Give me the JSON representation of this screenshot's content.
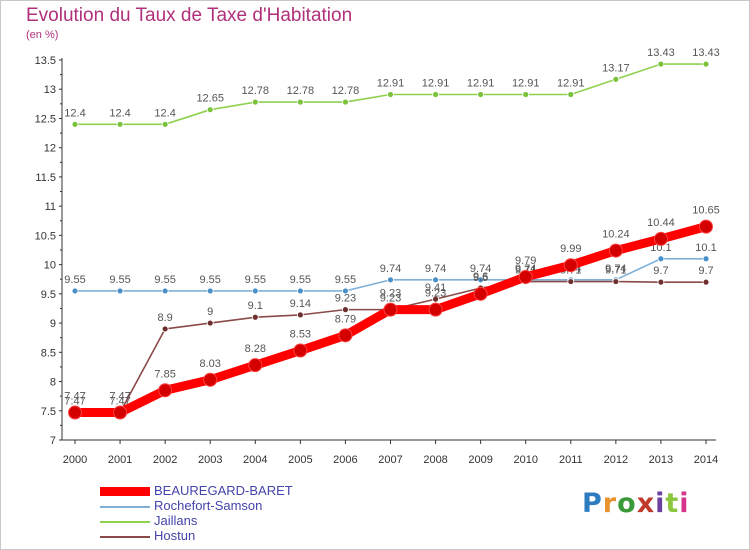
{
  "title": "Evolution du Taux de Taxe d'Habitation",
  "unit": "(en %)",
  "logo": {
    "text": "Proxiti",
    "letter_colors": [
      "#2e7cc0",
      "#e8932e",
      "#3a9a3a",
      "#c0392b",
      "#6a3fa0",
      "#8cc63f",
      "#d6338a"
    ]
  },
  "chart_data": {
    "type": "line",
    "title": "Evolution du Taux de Taxe d'Habitation",
    "ylabel": "(en %)",
    "xlabel": "",
    "ylim": [
      7,
      13.5
    ],
    "yticks": [
      "7",
      "7.5",
      "8",
      "8.5",
      "9",
      "9.5",
      "10",
      "10.5",
      "11",
      "11.5",
      "12",
      "12.5",
      "13",
      "13.5"
    ],
    "x": [
      "2000",
      "2001",
      "2002",
      "2003",
      "2004",
      "2005",
      "2006",
      "2007",
      "2008",
      "2009",
      "2010",
      "2011",
      "2012",
      "2013",
      "2014"
    ],
    "grid": false,
    "legend_position": "bottom-left",
    "series": [
      {
        "name": "Jaillans",
        "color": "#8fd14f",
        "marker": "#7ac23a",
        "values": [
          12.4,
          12.4,
          12.4,
          12.65,
          12.78,
          12.78,
          12.78,
          12.91,
          12.91,
          12.91,
          12.91,
          12.91,
          13.17,
          13.43,
          13.43
        ],
        "labels": [
          "12.4",
          "12.4",
          "12.4",
          "12.65",
          "12.78",
          "12.78",
          "12.78",
          "12.91",
          "12.91",
          "12.91",
          "12.91",
          "12.91",
          "13.17",
          "13.43",
          "13.43"
        ]
      },
      {
        "name": "Rochefort-Samson",
        "color": "#7fb0d8",
        "marker": "#4a90c8",
        "values": [
          9.55,
          9.55,
          9.55,
          9.55,
          9.55,
          9.55,
          9.55,
          9.74,
          9.74,
          9.74,
          9.74,
          9.74,
          9.74,
          10.1,
          10.1
        ],
        "labels": [
          "9.55",
          "9.55",
          "9.55",
          "9.55",
          "9.55",
          "9.55",
          "9.55",
          "9.74",
          "9.74",
          "9.74",
          "9.74",
          "9.74",
          "9.74",
          "10.1",
          "10.1"
        ]
      },
      {
        "name": "Hostun",
        "color": "#8b4a4a",
        "marker": "#6e2f2f",
        "values": [
          7.47,
          7.47,
          8.9,
          9.0,
          9.1,
          9.14,
          9.23,
          9.23,
          9.41,
          9.6,
          9.71,
          9.71,
          9.71,
          9.7,
          9.7
        ],
        "labels": [
          "7.47",
          "7.47",
          "8.9",
          "9",
          "9.1",
          "9.14",
          "9.23",
          "9.23",
          "9.41",
          "9.6",
          "9.71",
          "9.71",
          "9.71",
          "9.7",
          "9.7"
        ]
      },
      {
        "name": "BEAUREGARD-BARET",
        "color": "#ff0000",
        "marker": "#d40000",
        "values": [
          7.47,
          7.47,
          7.85,
          8.03,
          8.28,
          8.53,
          8.79,
          9.23,
          9.23,
          9.5,
          9.79,
          9.99,
          10.24,
          10.44,
          10.65
        ],
        "labels": [
          "7.47",
          "7.47",
          "7.85",
          "8.03",
          "8.28",
          "8.53",
          "8.79",
          "9.23",
          "9.23",
          "9.5",
          "9.79",
          "9.99",
          "10.24",
          "10.44",
          "10.65"
        ]
      }
    ],
    "legend_order": [
      "BEAUREGARD-BARET",
      "Rochefort-Samson",
      "Jaillans",
      "Hostun"
    ]
  }
}
